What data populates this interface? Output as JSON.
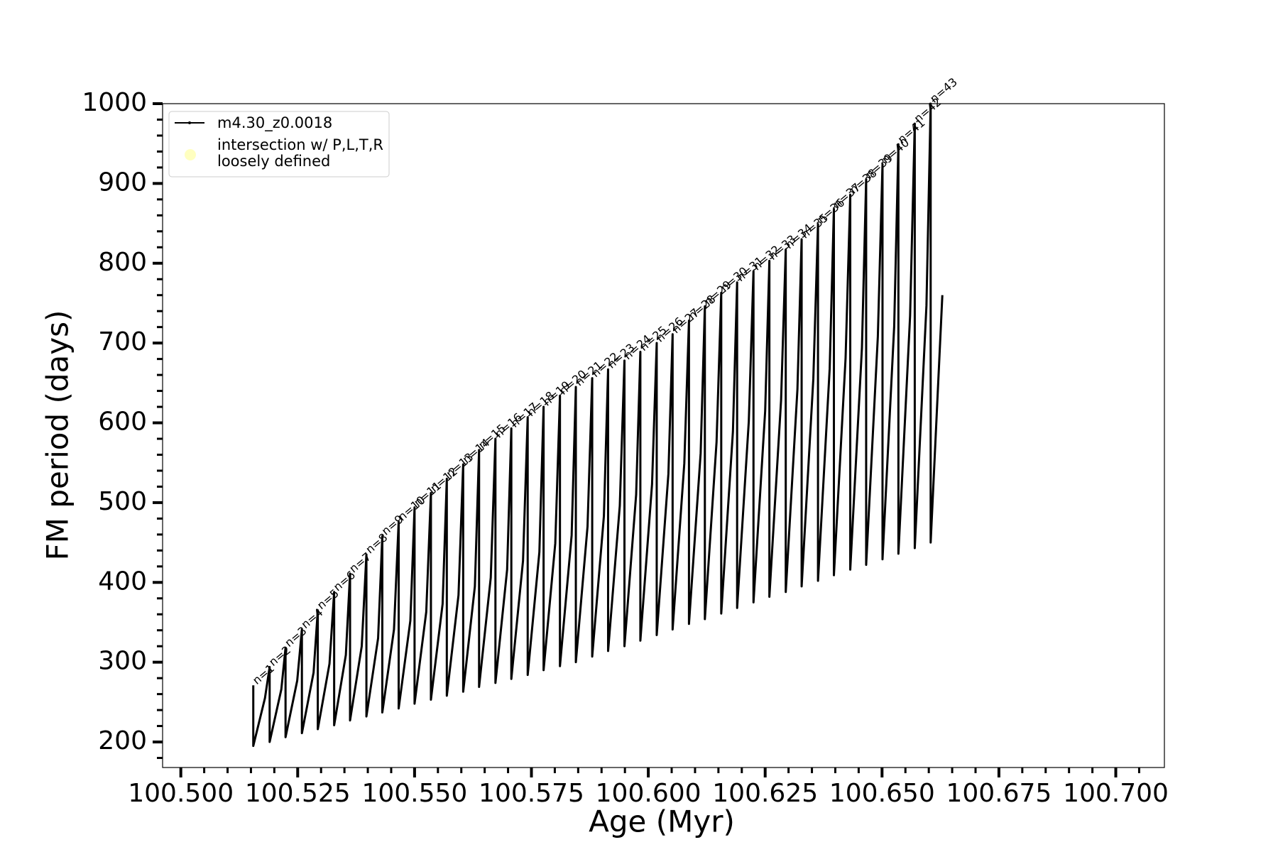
{
  "chart_data": {
    "type": "line",
    "xlabel": "Age (Myr)",
    "ylabel": "FM period (days)",
    "xlim": [
      100.4961,
      100.7104
    ],
    "ylim": [
      168,
      1000
    ],
    "xticks": [
      {
        "value": 100.5,
        "label": "100.500"
      },
      {
        "value": 100.525,
        "label": "100.525"
      },
      {
        "value": 100.55,
        "label": "100.550"
      },
      {
        "value": 100.575,
        "label": "100.575"
      },
      {
        "value": 100.6,
        "label": "100.600"
      },
      {
        "value": 100.625,
        "label": "100.625"
      },
      {
        "value": 100.65,
        "label": "100.650"
      },
      {
        "value": 100.675,
        "label": "100.675"
      },
      {
        "value": 100.7,
        "label": "100.700"
      }
    ],
    "xminorticks": [
      100.505,
      100.51,
      100.515,
      100.52,
      100.53,
      100.535,
      100.54,
      100.545,
      100.555,
      100.56,
      100.565,
      100.57,
      100.58,
      100.585,
      100.59,
      100.595,
      100.605,
      100.61,
      100.615,
      100.62,
      100.63,
      100.635,
      100.64,
      100.645,
      100.655,
      100.66,
      100.665,
      100.67,
      100.68,
      100.685,
      100.69,
      100.695,
      100.705
    ],
    "yticks": [
      200,
      300,
      400,
      500,
      600,
      700,
      800,
      900,
      1000
    ],
    "yminorticks": [
      180,
      220,
      240,
      260,
      280,
      320,
      340,
      360,
      380,
      420,
      440,
      460,
      480,
      520,
      540,
      560,
      580,
      620,
      640,
      660,
      680,
      720,
      740,
      760,
      780,
      820,
      840,
      860,
      880,
      920,
      940,
      960,
      980
    ],
    "legend": "upper left",
    "series": [
      {
        "name": "m4.30_z0.0018",
        "color": "#000000",
        "x": [
          100.5155,
          100.5155,
          100.518,
          100.519,
          100.519,
          100.5215,
          100.5224,
          100.5224,
          100.5249,
          100.5259,
          100.5259,
          100.5284,
          100.5293,
          100.5293,
          100.5318,
          100.5328,
          100.5328,
          100.5353,
          100.5362,
          100.5362,
          100.5387,
          100.5397,
          100.5397,
          100.5422,
          100.5431,
          100.5431,
          100.5456,
          100.5466,
          100.5466,
          100.5491,
          100.55,
          100.55,
          100.5525,
          100.5535,
          100.5535,
          100.556,
          100.5569,
          100.5569,
          100.5594,
          100.5604,
          100.5604,
          100.5629,
          100.5638,
          100.5638,
          100.5663,
          100.5673,
          100.5673,
          100.5698,
          100.5707,
          100.5707,
          100.5732,
          100.5742,
          100.5742,
          100.5767,
          100.5776,
          100.5776,
          100.5801,
          100.5811,
          100.5811,
          100.5836,
          100.5845,
          100.5845,
          100.587,
          100.588,
          100.588,
          100.5905,
          100.5914,
          100.5914,
          100.5939,
          100.5949,
          100.5949,
          100.5974,
          100.5983,
          100.5983,
          100.6008,
          100.6018,
          100.6018,
          100.6043,
          100.6052,
          100.6052,
          100.6077,
          100.6087,
          100.6087,
          100.6112,
          100.6121,
          100.6121,
          100.6146,
          100.6156,
          100.6156,
          100.6181,
          100.619,
          100.619,
          100.6215,
          100.6225,
          100.6225,
          100.625,
          100.6259,
          100.6259,
          100.6284,
          100.6294,
          100.6294,
          100.6319,
          100.6328,
          100.6328,
          100.6353,
          100.6363,
          100.6363,
          100.6388,
          100.6397,
          100.6397,
          100.6422,
          100.6432,
          100.6432,
          100.6457,
          100.6466,
          100.6466,
          100.6491,
          100.6501,
          100.6501,
          100.6526,
          100.6535,
          100.6535,
          100.656,
          100.657,
          100.657,
          100.6595,
          100.6604,
          100.6604,
          100.6629
        ],
        "values": [
          271,
          195,
          255,
          294,
          200,
          266,
          318,
          206,
          277,
          341,
          211,
          287,
          365,
          216,
          298,
          388,
          221,
          309,
          411,
          227,
          320,
          435,
          232,
          330,
          458,
          237,
          341,
          476,
          242,
          352,
          494,
          248,
          363,
          512,
          253,
          373,
          530,
          258,
          384,
          548,
          263,
          395,
          566,
          269,
          406,
          580,
          274,
          416,
          593,
          279,
          427,
          607,
          284,
          438,
          620,
          290,
          449,
          634,
          295,
          459,
          645,
          300,
          470,
          656,
          307,
          483,
          667,
          314,
          496,
          678,
          320,
          510,
          689,
          327,
          523,
          700,
          334,
          536,
          711,
          341,
          549,
          728,
          348,
          562,
          746,
          354,
          576,
          763,
          361,
          589,
          776,
          368,
          602,
          790,
          375,
          615,
          803,
          382,
          628,
          817,
          388,
          642,
          830,
          395,
          655,
          849,
          402,
          668,
          868,
          409,
          681,
          886,
          416,
          694,
          905,
          422,
          708,
          924,
          429,
          721,
          949,
          436,
          734,
          975,
          443,
          747,
          1000,
          450,
          760
        ]
      },
      {
        "name": "intersection w/ P,L,T,R\nloosely defined",
        "color": "#ffffb0",
        "x": [],
        "values": []
      }
    ],
    "annotations": [
      "n=1",
      "n=2",
      "n=3",
      "n=4",
      "n=5",
      "n=6",
      "n=7",
      "n=8",
      "n=9",
      "n=10",
      "n=11",
      "n=12",
      "n=13",
      "n=14",
      "n=15",
      "n=16",
      "n=17",
      "n=18",
      "n=19",
      "n=20",
      "n=21",
      "n=22",
      "n=23",
      "n=24",
      "n=25",
      "n=26",
      "n=27",
      "n=28",
      "n=29",
      "n=30",
      "n=31",
      "n=32",
      "n=33",
      "n=34",
      "n=35",
      "n=36",
      "n=37",
      "n=38",
      "n=39",
      "n=40",
      "n=41",
      "n=42",
      "n=43"
    ]
  }
}
